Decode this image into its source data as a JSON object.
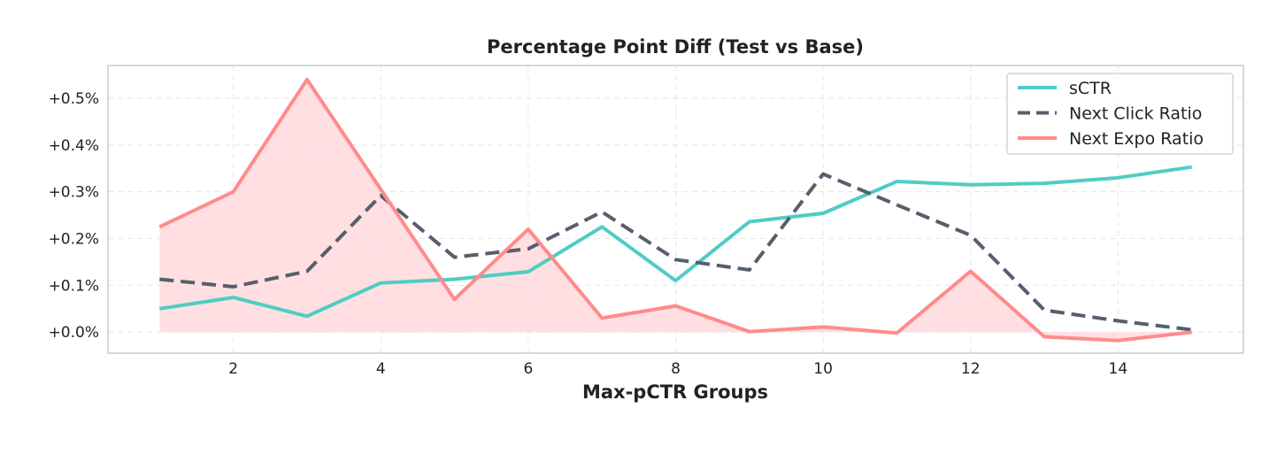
{
  "chart_data": {
    "type": "line",
    "title": "Percentage Point Diff (Test vs Base)",
    "xlabel": "Max-pCTR Groups",
    "ylabel": "",
    "x": [
      1,
      2,
      3,
      4,
      5,
      6,
      7,
      8,
      9,
      10,
      11,
      12,
      13,
      14,
      15
    ],
    "xlim": [
      0.3,
      15.7
    ],
    "ylim": [
      -0.045,
      0.57
    ],
    "xticks": [
      2,
      4,
      6,
      8,
      10,
      12,
      14
    ],
    "xtick_labels": [
      "2",
      "4",
      "6",
      "8",
      "10",
      "12",
      "14"
    ],
    "yticks": [
      0,
      0.1,
      0.2,
      0.3,
      0.4,
      0.5
    ],
    "ytick_labels": [
      "+0.0%",
      "+0.1%",
      "+0.2%",
      "+0.3%",
      "+0.4%",
      "+0.5%"
    ],
    "grid": true,
    "legend_position": "top-right",
    "series": [
      {
        "name": "sCTR",
        "color": "#4ecdc4",
        "style": "solid",
        "values": [
          0.05,
          0.074,
          0.034,
          0.105,
          0.113,
          0.129,
          0.225,
          0.11,
          0.236,
          0.254,
          0.322,
          0.315,
          0.318,
          0.33,
          0.353
        ]
      },
      {
        "name": "Next Click Ratio",
        "color": "#555f6d",
        "style": "dashed",
        "values": [
          0.113,
          0.097,
          0.13,
          0.292,
          0.16,
          0.178,
          0.257,
          0.155,
          0.133,
          0.338,
          0.272,
          0.207,
          0.047,
          0.024,
          0.005
        ]
      },
      {
        "name": "Next Expo Ratio",
        "color": "#ff8b8b",
        "style": "solid",
        "fill": "#ffdde0",
        "values": [
          0.225,
          0.3,
          0.54,
          0.305,
          0.07,
          0.22,
          0.03,
          0.056,
          0.001,
          0.011,
          -0.002,
          0.13,
          -0.01,
          -0.018,
          0.0
        ]
      }
    ]
  }
}
